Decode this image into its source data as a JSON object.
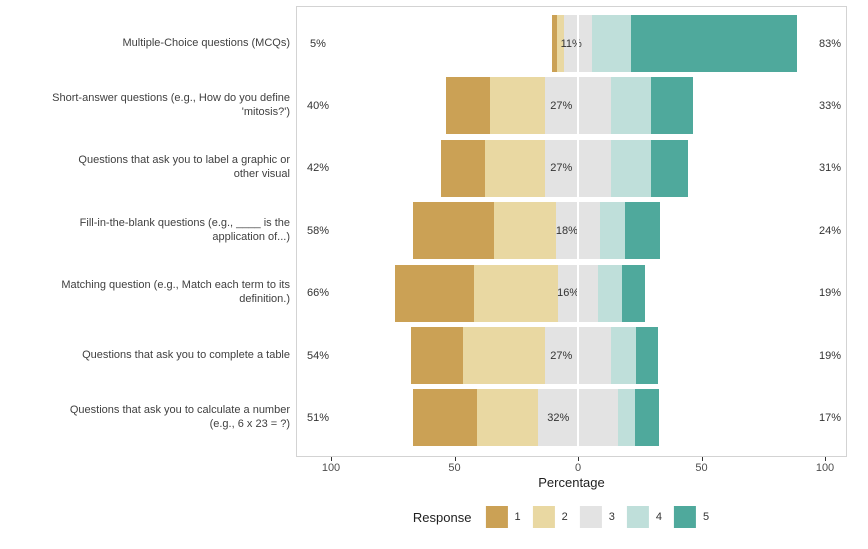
{
  "chart_data": {
    "type": "bar",
    "subtype": "diverging-stacked-likert",
    "orientation": "horizontal",
    "title": "",
    "xlabel": "Percentage",
    "legend_title": "Response",
    "legend_position": "bottom",
    "legend_labels": [
      "1",
      "2",
      "3",
      "4",
      "5"
    ],
    "colors": [
      "#cba155",
      "#e9d8a2",
      "#e3e3e3",
      "#bfdfda",
      "#4fa99c"
    ],
    "x_ticks": [
      -100,
      -50,
      0,
      50,
      100
    ],
    "x_tick_labels": [
      "100",
      "50",
      "0",
      "50",
      "100"
    ],
    "xlim": [
      -114,
      109
    ],
    "grid": false,
    "note": "Neutral (3) segment is split evenly across the zero line; per-level values estimated from bar widths; left/mid/right labels are the printed totals",
    "rows": [
      {
        "label": "Multiple-Choice questions (MCQs)",
        "left_label": "5%",
        "mid_label": "11%",
        "right_label": "83%",
        "values": [
          2,
          3,
          11,
          16,
          67
        ]
      },
      {
        "label": "Short-answer questions (e.g., How do you define\n'mitosis?')",
        "left_label": "40%",
        "mid_label": "27%",
        "right_label": "33%",
        "values": [
          18,
          22,
          27,
          16,
          17
        ]
      },
      {
        "label": "Questions that ask you to label a graphic or\nother visual",
        "left_label": "42%",
        "mid_label": "27%",
        "right_label": "31%",
        "values": [
          18,
          24,
          27,
          16,
          15
        ]
      },
      {
        "label": "Fill-in-the-blank questions (e.g., ____ is the\napplication of...)",
        "left_label": "58%",
        "mid_label": "18%",
        "right_label": "24%",
        "values": [
          33,
          25,
          18,
          10,
          14
        ]
      },
      {
        "label": "Matching question (e.g., Match each term to its\ndefinition.)",
        "left_label": "66%",
        "mid_label": "16%",
        "right_label": "19%",
        "values": [
          32,
          34,
          16,
          10,
          9
        ]
      },
      {
        "label": "Questions that ask you to complete a table",
        "left_label": "54%",
        "mid_label": "27%",
        "right_label": "19%",
        "values": [
          21,
          33,
          27,
          10,
          9
        ]
      },
      {
        "label": "Questions that ask you to calculate a number\n(e.g., 6 x 23 = ?)",
        "left_label": "51%",
        "mid_label": "32%",
        "right_label": "17%",
        "values": [
          26,
          25,
          32,
          7,
          10
        ]
      }
    ]
  }
}
